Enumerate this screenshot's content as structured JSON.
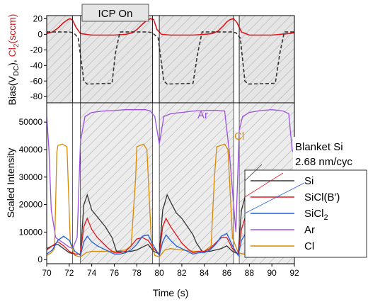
{
  "chart_data": [
    {
      "type": "line",
      "panel": "top",
      "ylabel_parts": [
        "Bias(V",
        "DC",
        "), ",
        "Cl",
        "2",
        "(sccm)"
      ],
      "ylabel_colors": [
        "#000000",
        "#e0141b"
      ],
      "ylim": [
        -88,
        24
      ],
      "yticks": [
        20,
        0,
        -20,
        -40,
        -60,
        -80
      ],
      "ytick_labels": [
        "20",
        "0",
        "-20",
        "-40",
        "-60",
        "-80"
      ],
      "xlim": [
        70,
        92
      ],
      "icp_on_label": "ICP On",
      "icp_on_windows": [
        [
          72.3,
          73.0
        ],
        [
          79.4,
          80.0
        ],
        [
          86.6,
          87.1
        ]
      ],
      "series": [
        {
          "name": "Cl2 flow",
          "color": "#e0141b",
          "x": [
            70.0,
            70.5,
            71.0,
            71.5,
            71.9,
            72.1,
            72.3,
            72.6,
            73.0,
            74.0,
            76.0,
            77.0,
            77.6,
            78.0,
            78.5,
            78.9,
            79.2,
            79.5,
            79.8,
            80.2,
            81.0,
            83.0,
            84.0,
            84.7,
            85.2,
            85.7,
            86.0,
            86.3,
            86.6,
            86.9,
            87.3,
            88.0,
            90.0,
            91.5,
            92.0
          ],
          "y": [
            1,
            3,
            8,
            15,
            19,
            20,
            18,
            9,
            1,
            -1,
            -1,
            0,
            2,
            6,
            13,
            18,
            20,
            19,
            6,
            0,
            -1,
            -1,
            0,
            1,
            4,
            11,
            16,
            19,
            20,
            15,
            3,
            -1,
            -1,
            1,
            2
          ]
        },
        {
          "name": "DC bias",
          "color": "#333333",
          "dashed": true,
          "x": [
            70.0,
            72.0,
            72.4,
            72.8,
            73.3,
            73.6,
            75.8,
            76.1,
            76.5,
            79.0,
            79.4,
            79.9,
            80.4,
            80.7,
            83.0,
            83.4,
            83.8,
            86.4,
            86.8,
            87.2,
            87.6,
            87.9,
            90.3,
            90.7,
            91.1,
            92.0
          ],
          "y": [
            3,
            3,
            2,
            -5,
            -60,
            -64,
            -63,
            -25,
            3,
            3,
            2,
            -5,
            -60,
            -64,
            -63,
            -25,
            3,
            3,
            2,
            -5,
            -60,
            -64,
            -63,
            -25,
            3,
            3
          ]
        }
      ]
    },
    {
      "type": "line",
      "panel": "bottom",
      "xlabel": "Time (s)",
      "ylabel": "Scaled Intensity",
      "xlim": [
        70,
        92
      ],
      "ylim": [
        -1500,
        57000
      ],
      "xticks": [
        70,
        72,
        74,
        76,
        78,
        80,
        82,
        84,
        86,
        88,
        90,
        92
      ],
      "xtick_labels": [
        "70",
        "72",
        "74",
        "76",
        "78",
        "80",
        "82",
        "84",
        "86",
        "88",
        "90",
        "92"
      ],
      "yticks": [
        0,
        10000,
        20000,
        30000,
        40000,
        50000
      ],
      "ytick_labels": [
        "0",
        "10000",
        "20000",
        "30000",
        "40000",
        "50000"
      ],
      "hatched_windows": [
        [
          73.0,
          79.4
        ],
        [
          80.0,
          86.6
        ],
        [
          87.1,
          92.0
        ]
      ],
      "annotation_text": "Blanket Si",
      "annotation_rate": "2.68 nm/cyc",
      "legend_position": "bottom-right",
      "label_ar": "Ar",
      "label_cl": "Cl",
      "series": [
        {
          "name": "Ar",
          "color": "#9b4fe0",
          "x": [
            70.0,
            70.2,
            70.4,
            70.8,
            71.5,
            72.0,
            72.3,
            72.7,
            73.0,
            73.4,
            74.0,
            75.0,
            76.0,
            77.0,
            78.0,
            78.8,
            79.2,
            79.6,
            80.0,
            80.4,
            81.0,
            82.0,
            83.0,
            84.0,
            85.0,
            85.8,
            86.2,
            86.8,
            87.1,
            87.4,
            88.0,
            89.0,
            90.0,
            91.0,
            91.5,
            91.8,
            92.0
          ],
          "y": [
            52000,
            40000,
            18000,
            8000,
            6000,
            4500,
            4000,
            8000,
            43000,
            52000,
            53500,
            54000,
            54200,
            54500,
            54500,
            54500,
            54000,
            52000,
            42000,
            52000,
            53000,
            53500,
            54000,
            54200,
            54300,
            54000,
            40000,
            10000,
            47000,
            52000,
            53500,
            54200,
            54500,
            54000,
            53000,
            40000,
            38000
          ]
        },
        {
          "name": "Cl",
          "color": "#d98a00",
          "x": [
            70.0,
            70.4,
            70.7,
            70.9,
            71.0,
            71.4,
            71.8,
            72.1,
            72.5,
            73.0,
            73.5,
            74.0,
            75.0,
            76.0,
            77.0,
            77.5,
            77.9,
            78.0,
            78.6,
            78.9,
            79.3,
            79.6,
            80.0,
            80.5,
            81.0,
            82.0,
            83.0,
            84.0,
            84.6,
            84.9,
            85.1,
            85.8,
            86.1,
            86.5,
            87.0,
            87.5,
            88.0,
            89.0,
            90.0,
            91.0,
            91.5,
            92.0
          ],
          "y": [
            1500,
            2500,
            4000,
            39000,
            41500,
            42000,
            41000,
            6000,
            1500,
            1000,
            2500,
            3000,
            3000,
            3000,
            3500,
            5000,
            30000,
            41000,
            42000,
            40000,
            6000,
            1500,
            1000,
            3500,
            4000,
            3500,
            3000,
            3000,
            5000,
            30000,
            41000,
            42000,
            40000,
            8000,
            2500,
            2000,
            3000,
            3500,
            3500,
            3000,
            3500,
            3000
          ]
        },
        {
          "name": "Si",
          "color": "#333333",
          "x": [
            70.0,
            70.5,
            71.0,
            71.5,
            72.0,
            72.5,
            73.0,
            73.3,
            73.6,
            74.0,
            74.6,
            75.2,
            75.8,
            76.2,
            76.8,
            77.5,
            78.0,
            78.5,
            79.0,
            79.5,
            80.0,
            80.3,
            80.7,
            81.0,
            81.5,
            82.0,
            82.5,
            83.0,
            83.3,
            83.8,
            84.5,
            85.0,
            85.5,
            86.0,
            86.5,
            87.0,
            87.3,
            87.7,
            88.0,
            88.5,
            89.0,
            89.5,
            90.0,
            90.4,
            90.8,
            91.4,
            92.0
          ],
          "y": [
            4000,
            5000,
            5500,
            4000,
            2500,
            2000,
            2000,
            20000,
            23500,
            18000,
            15000,
            12000,
            8000,
            3000,
            2800,
            3000,
            3500,
            4500,
            5500,
            3000,
            2000,
            18000,
            23500,
            21000,
            17000,
            15000,
            12000,
            9000,
            6000,
            3000,
            3000,
            3500,
            4000,
            5000,
            3000,
            2000,
            18000,
            24000,
            20000,
            17000,
            15000,
            12000,
            9000,
            4000,
            3000,
            3000,
            4000
          ]
        },
        {
          "name": "SiCl(B')",
          "color": "#e0141b",
          "x": [
            70.0,
            70.5,
            71.0,
            71.5,
            72.0,
            72.5,
            73.0,
            73.3,
            73.6,
            74.0,
            74.5,
            75.0,
            75.5,
            76.0,
            76.5,
            77.0,
            77.5,
            78.0,
            78.5,
            79.0,
            79.5,
            80.0,
            80.3,
            80.6,
            81.0,
            81.5,
            82.0,
            82.5,
            83.0,
            83.5,
            84.0,
            84.5,
            85.0,
            85.5,
            86.0,
            86.5,
            87.0,
            87.3,
            87.6,
            88.0,
            88.5,
            89.0,
            89.5,
            90.0,
            90.5,
            91.0,
            91.5,
            92.0
          ],
          "y": [
            3500,
            5000,
            6500,
            5000,
            3000,
            2000,
            2000,
            12000,
            15000,
            11000,
            8000,
            6000,
            4000,
            2500,
            2500,
            3000,
            5000,
            7500,
            8000,
            7000,
            4000,
            2000,
            12000,
            15000,
            12000,
            9000,
            6000,
            4000,
            2500,
            3000,
            3000,
            4000,
            6000,
            8000,
            8000,
            4000,
            2000,
            11000,
            15000,
            12000,
            9000,
            6000,
            4000,
            2500,
            2500,
            3500,
            4000,
            4500
          ]
        },
        {
          "name": "SiCl2",
          "color": "#1f5fd6",
          "x": [
            70.0,
            70.5,
            71.0,
            71.5,
            72.0,
            72.5,
            73.0,
            73.3,
            73.6,
            74.0,
            74.5,
            75.0,
            75.5,
            76.0,
            76.5,
            77.0,
            77.5,
            78.0,
            78.5,
            79.0,
            79.5,
            80.0,
            80.3,
            80.6,
            81.0,
            81.5,
            82.0,
            82.5,
            83.0,
            83.5,
            84.0,
            84.5,
            85.0,
            85.5,
            86.0,
            86.5,
            87.0,
            87.3,
            87.6,
            88.0,
            88.5,
            89.0,
            89.5,
            90.0,
            90.5,
            91.0,
            91.5,
            92.0
          ],
          "y": [
            2000,
            3500,
            7000,
            8500,
            7000,
            3000,
            1500,
            6500,
            8500,
            6500,
            5000,
            4000,
            3000,
            2000,
            2000,
            2500,
            3500,
            5500,
            8500,
            9000,
            5000,
            1500,
            6500,
            9000,
            7000,
            5000,
            4000,
            3000,
            2000,
            2500,
            2500,
            3500,
            5500,
            8500,
            9500,
            5000,
            1500,
            7000,
            9000,
            7000,
            5000,
            4000,
            3000,
            2000,
            2000,
            2500,
            3000,
            3500
          ]
        }
      ],
      "legend_entries": [
        {
          "name": "Si",
          "color": "#333333",
          "label_parts": [
            "Si"
          ]
        },
        {
          "name": "SiCl(B')",
          "color": "#e0141b",
          "label_parts": [
            "SiCl(B')"
          ]
        },
        {
          "name": "SiCl2",
          "color": "#1f5fd6",
          "label_parts": [
            "SiCl",
            "2"
          ]
        },
        {
          "name": "Ar",
          "color": "#9b4fe0",
          "label_parts": [
            "Ar"
          ]
        },
        {
          "name": "Cl",
          "color": "#d98a00",
          "label_parts": [
            "Cl"
          ]
        }
      ]
    }
  ]
}
